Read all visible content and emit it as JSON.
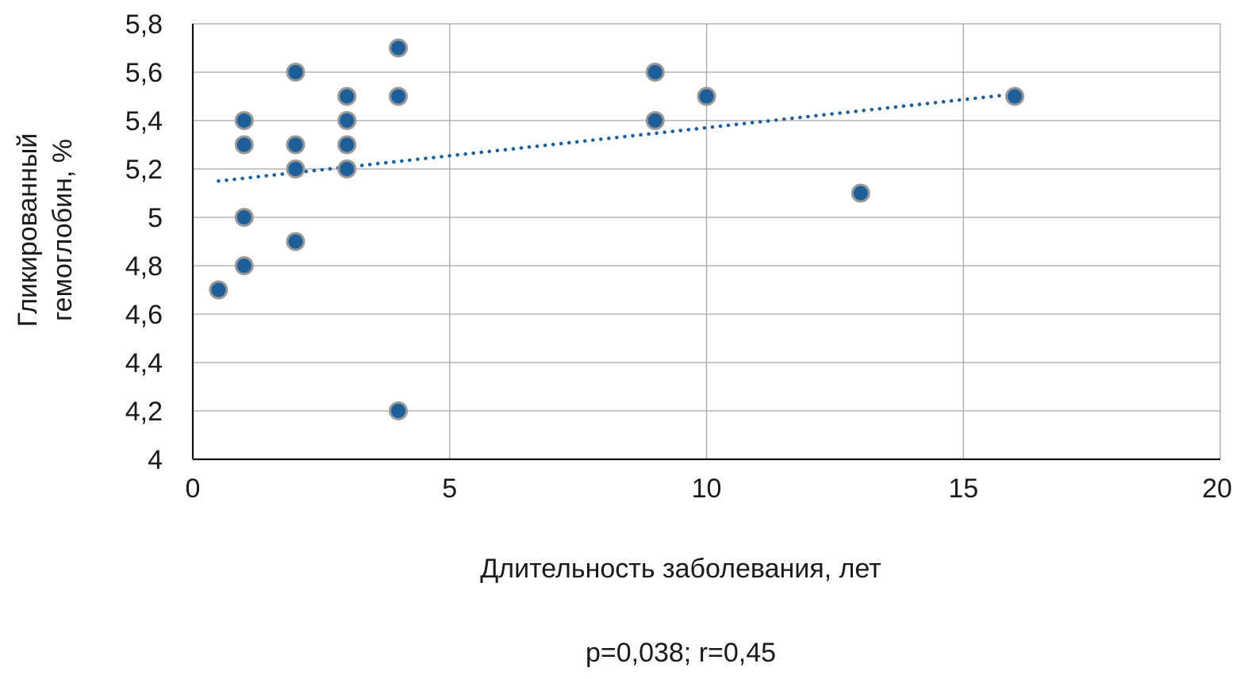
{
  "chart_data": {
    "type": "scatter",
    "title": "",
    "xlabel": "Длительность заболевания, лет",
    "ylabel_lines": [
      "Гликированный",
      "гемоглобин, %"
    ],
    "xlim": [
      0,
      20
    ],
    "ylim": [
      4,
      5.8
    ],
    "x_ticks": [
      0,
      5,
      10,
      15,
      20
    ],
    "x_tick_labels": [
      "0",
      "5",
      "10",
      "15",
      "20"
    ],
    "y_ticks": [
      4,
      4.2,
      4.4,
      4.6,
      4.8,
      5,
      5.2,
      5.4,
      5.6,
      5.8
    ],
    "y_tick_labels": [
      "4",
      "4,2",
      "4,4",
      "4,6",
      "4,8",
      "5",
      "5,2",
      "5,4",
      "5,6",
      "5,8"
    ],
    "grid": true,
    "point_color": "#1f5f99",
    "point_edge_color": "#999999",
    "trendline_color": "#1f5f99",
    "points": [
      {
        "x": 0.5,
        "y": 4.7
      },
      {
        "x": 1,
        "y": 4.8
      },
      {
        "x": 1,
        "y": 5.0
      },
      {
        "x": 1,
        "y": 5.3
      },
      {
        "x": 1,
        "y": 5.4
      },
      {
        "x": 2,
        "y": 4.9
      },
      {
        "x": 2,
        "y": 5.2
      },
      {
        "x": 2,
        "y": 5.3
      },
      {
        "x": 2,
        "y": 5.6
      },
      {
        "x": 3,
        "y": 5.2
      },
      {
        "x": 3,
        "y": 5.3
      },
      {
        "x": 3,
        "y": 5.4
      },
      {
        "x": 3,
        "y": 5.5
      },
      {
        "x": 4,
        "y": 4.2
      },
      {
        "x": 4,
        "y": 5.5
      },
      {
        "x": 4,
        "y": 5.7
      },
      {
        "x": 9,
        "y": 5.4
      },
      {
        "x": 9,
        "y": 5.6
      },
      {
        "x": 10,
        "y": 5.5
      },
      {
        "x": 13,
        "y": 5.1
      },
      {
        "x": 16,
        "y": 5.5
      }
    ],
    "trendline": {
      "x": [
        0.5,
        16
      ],
      "y": [
        5.15,
        5.51
      ]
    },
    "annotation": "p=0,038; r=0,45"
  }
}
